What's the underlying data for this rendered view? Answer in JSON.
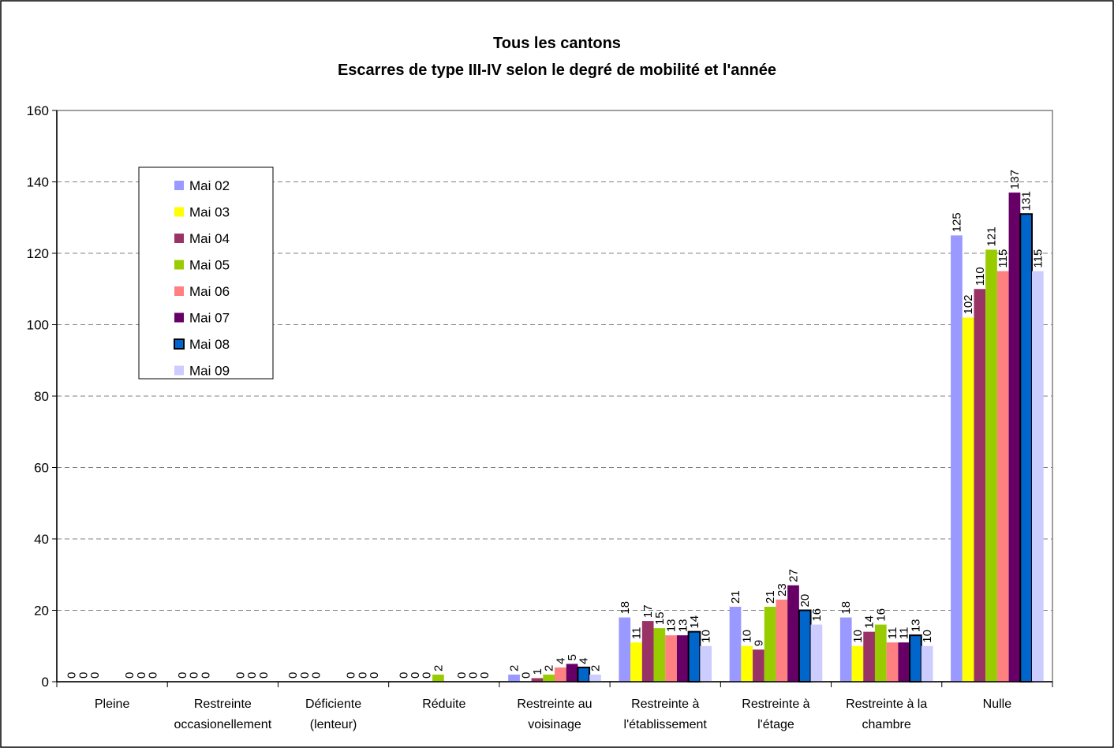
{
  "chart_data": {
    "type": "bar",
    "title": "Tous les cantons",
    "subtitle": "Escarres de type III-IV selon le degré de mobilité et l'année",
    "xlabel": "",
    "ylabel": "",
    "ylim": [
      0,
      160
    ],
    "yticks": [
      "0",
      "20",
      "40",
      "60",
      "80",
      "100",
      "120",
      "140",
      "160"
    ],
    "grid": true,
    "legend_position": "top-left",
    "categories": [
      [
        "Pleine"
      ],
      [
        "Restreinte",
        "occasionellement"
      ],
      [
        "Déficiente",
        "(lenteur)"
      ],
      [
        "Réduite"
      ],
      [
        "Restreinte au",
        "voisinage"
      ],
      [
        "Restreinte à",
        "l'établissement"
      ],
      [
        "Restreinte à",
        "l'étage"
      ],
      [
        "Restreinte à la",
        "chambre"
      ],
      [
        "Nulle"
      ]
    ],
    "series": [
      {
        "name": "Mai 02",
        "color": "#9999ff",
        "values": [
          0,
          0,
          0,
          0,
          2,
          18,
          21,
          18,
          125
        ],
        "labels": [
          "0",
          "0",
          "0",
          "0",
          "2",
          "18",
          "21",
          "18",
          "125"
        ]
      },
      {
        "name": "Mai 03",
        "color": "#ffff00",
        "values": [
          0,
          0,
          0,
          0,
          0,
          11,
          10,
          10,
          102
        ],
        "labels": [
          "0",
          "0",
          "0",
          "0",
          "0",
          "11",
          "10",
          "10",
          "102"
        ]
      },
      {
        "name": "Mai 04",
        "color": "#993366",
        "values": [
          0,
          0,
          0,
          0,
          1,
          17,
          9,
          14,
          110
        ],
        "labels": [
          "0",
          "0",
          "0",
          "0",
          "1",
          "17",
          "9",
          "14",
          "110"
        ]
      },
      {
        "name": "Mai 05",
        "color": "#99cc00",
        "values": [
          0,
          0,
          0,
          2,
          2,
          15,
          21,
          16,
          121
        ],
        "labels": [
          "",
          "",
          "",
          "2",
          "2",
          "15",
          "21",
          "16",
          "121"
        ]
      },
      {
        "name": "Mai 06",
        "color": "#ff8080",
        "values": [
          0,
          0,
          0,
          0,
          4,
          13,
          23,
          11,
          115
        ],
        "labels": [
          "",
          "",
          "",
          "",
          "4",
          "13",
          "23",
          "11",
          "115"
        ]
      },
      {
        "name": "Mai 07",
        "color": "#660066",
        "values": [
          0,
          0,
          0,
          0,
          5,
          13,
          27,
          11,
          137
        ],
        "labels": [
          "0",
          "0",
          "0",
          "0",
          "5",
          "13",
          "27",
          "11",
          "137"
        ]
      },
      {
        "name": "Mai 08",
        "color": "#0066cc",
        "outline": true,
        "values": [
          0,
          0,
          0,
          0,
          4,
          14,
          20,
          13,
          131
        ],
        "labels": [
          "0",
          "0",
          "0",
          "0",
          "4",
          "14",
          "20",
          "13",
          "131"
        ]
      },
      {
        "name": "Mai 09",
        "color": "#ccccff",
        "values": [
          0,
          0,
          0,
          0,
          2,
          10,
          16,
          10,
          115
        ],
        "labels": [
          "0",
          "0",
          "0",
          "0",
          "2",
          "10",
          "16",
          "10",
          "115"
        ]
      }
    ]
  }
}
